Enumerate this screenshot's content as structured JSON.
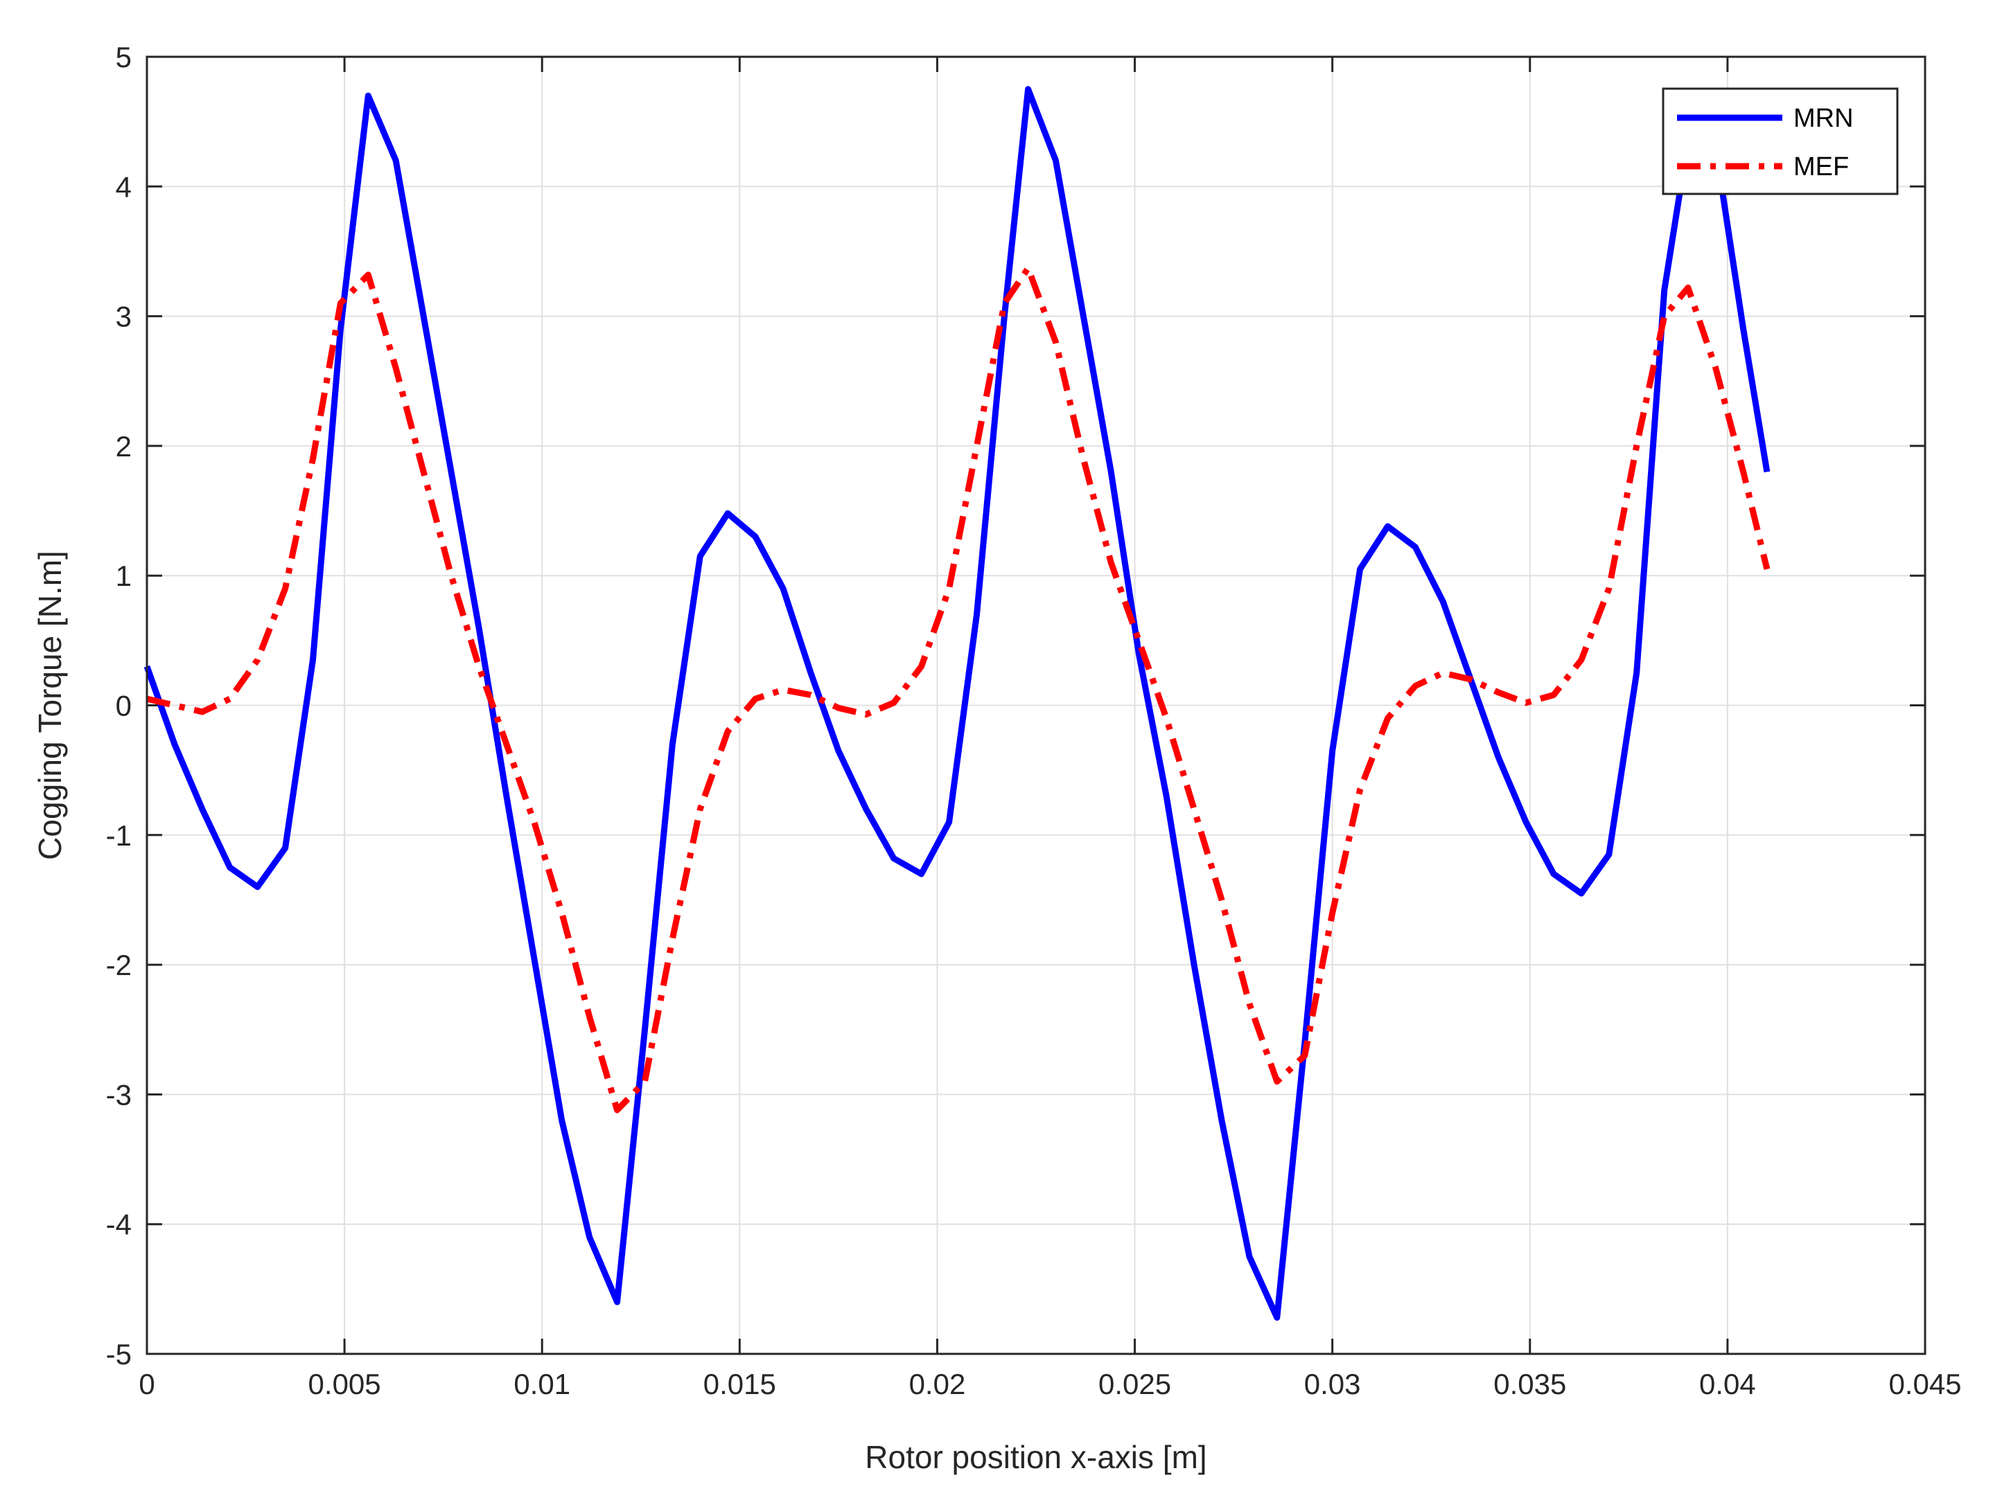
{
  "chart_data": {
    "type": "line",
    "title": "",
    "xlabel": "Rotor position x-axis [m]",
    "ylabel": "Cogging Torque [N.m]",
    "xlim": [
      0,
      0.045
    ],
    "ylim": [
      -5,
      5
    ],
    "xticks": [
      0,
      0.005,
      0.01,
      0.015,
      0.02,
      0.025,
      0.03,
      0.035,
      0.04,
      0.045
    ],
    "xtick_labels": [
      "0",
      "0.005",
      "0.01",
      "0.015",
      "0.02",
      "0.025",
      "0.03",
      "0.035",
      "0.04",
      "0.045"
    ],
    "yticks": [
      -5,
      -4,
      -3,
      -2,
      -1,
      0,
      1,
      2,
      3,
      4,
      5
    ],
    "ytick_labels": [
      "-5",
      "-4",
      "-3",
      "-2",
      "-1",
      "0",
      "1",
      "2",
      "3",
      "4",
      "5"
    ],
    "grid": true,
    "legend_position": "top-right",
    "series": [
      {
        "name": "MRN",
        "color": "#0000ff",
        "style": "solid",
        "x": [
          0,
          0.0007,
          0.0014,
          0.0021,
          0.0028,
          0.0035,
          0.0042,
          0.0049,
          0.0056,
          0.0063,
          0.007,
          0.0077,
          0.0084,
          0.0091,
          0.0098,
          0.0105,
          0.0112,
          0.0119,
          0.0126,
          0.0133,
          0.014,
          0.0147,
          0.0154,
          0.0161,
          0.0168,
          0.0175,
          0.0182,
          0.0189,
          0.0196,
          0.0203,
          0.021,
          0.0217,
          0.0223,
          0.023,
          0.0237,
          0.0244,
          0.0251,
          0.0258,
          0.0265,
          0.0272,
          0.0279,
          0.0286,
          0.0293,
          0.03,
          0.0307,
          0.0314,
          0.0321,
          0.0328,
          0.0335,
          0.0342,
          0.0349,
          0.0356,
          0.0363,
          0.037,
          0.0377,
          0.0384,
          0.039,
          0.0397,
          0.0404,
          0.041
        ],
        "y": [
          0.3,
          -0.3,
          -0.8,
          -1.25,
          -1.4,
          -1.1,
          0.35,
          2.9,
          4.7,
          4.2,
          3.0,
          1.8,
          0.6,
          -0.7,
          -1.95,
          -3.2,
          -4.1,
          -4.6,
          -2.5,
          -0.3,
          1.15,
          1.48,
          1.3,
          0.9,
          0.25,
          -0.35,
          -0.8,
          -1.18,
          -1.3,
          -0.9,
          0.7,
          3.0,
          4.75,
          4.2,
          3.0,
          1.8,
          0.4,
          -0.7,
          -2.0,
          -3.2,
          -4.25,
          -4.72,
          -2.6,
          -0.35,
          1.05,
          1.38,
          1.22,
          0.8,
          0.2,
          -0.4,
          -0.9,
          -1.3,
          -1.45,
          -1.15,
          0.25,
          3.2,
          4.35,
          4.3,
          2.9,
          1.8
        ]
      },
      {
        "name": "MEF",
        "color": "#ff0000",
        "style": "dash-dot",
        "x": [
          0,
          0.0007,
          0.0014,
          0.0021,
          0.0028,
          0.0035,
          0.0042,
          0.0049,
          0.0056,
          0.0063,
          0.007,
          0.0077,
          0.0084,
          0.0091,
          0.0098,
          0.0105,
          0.0112,
          0.0119,
          0.0126,
          0.0133,
          0.014,
          0.0147,
          0.0154,
          0.0161,
          0.0168,
          0.0175,
          0.0182,
          0.0189,
          0.0196,
          0.0203,
          0.021,
          0.0217,
          0.0223,
          0.023,
          0.0237,
          0.0244,
          0.0251,
          0.0258,
          0.0265,
          0.0272,
          0.0279,
          0.0286,
          0.0293,
          0.03,
          0.0307,
          0.0314,
          0.0321,
          0.0328,
          0.0335,
          0.0342,
          0.0349,
          0.0356,
          0.0363,
          0.037,
          0.0377,
          0.0384,
          0.039,
          0.0397,
          0.0404,
          0.041
        ],
        "y": [
          0.05,
          0.0,
          -0.05,
          0.05,
          0.35,
          0.9,
          1.9,
          3.1,
          3.32,
          2.6,
          1.8,
          1.0,
          0.3,
          -0.3,
          -0.9,
          -1.6,
          -2.4,
          -3.12,
          -2.9,
          -1.8,
          -0.8,
          -0.2,
          0.05,
          0.12,
          0.08,
          -0.02,
          -0.07,
          0.02,
          0.3,
          0.9,
          2.0,
          3.1,
          3.37,
          2.8,
          1.9,
          1.1,
          0.5,
          -0.1,
          -0.8,
          -1.5,
          -2.3,
          -2.9,
          -2.7,
          -1.6,
          -0.65,
          -0.1,
          0.15,
          0.25,
          0.2,
          0.1,
          0.02,
          0.08,
          0.35,
          0.9,
          2.0,
          3.0,
          3.22,
          2.6,
          1.8,
          1.05
        ]
      }
    ]
  }
}
